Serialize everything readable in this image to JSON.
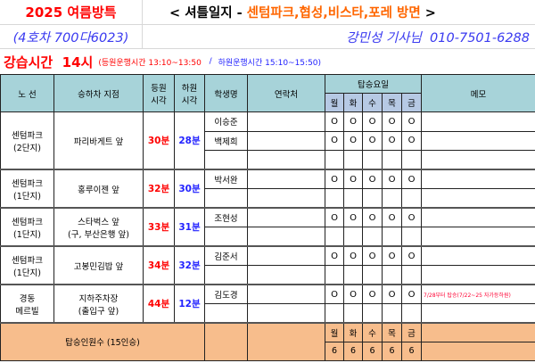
{
  "header": {
    "program": "2025 여름방특",
    "title_prefix": "< 셔틀일지 - ",
    "title_area": "센텀파크,협성,비스타,포레 방면",
    "title_suffix": " >",
    "bus": "(4호차 700다6023)",
    "driver": "강민성 기사님  010-7501-6288"
  },
  "schedule": {
    "class_time": "강습시간  14시",
    "pickup": "(등원운행시간 13:10~13:50",
    "sep": " / ",
    "dropoff": "하원운행시간 15:10~15:50)"
  },
  "columns": {
    "route": "노 선",
    "stop": "승하차 지점",
    "pickup": "등원\n시각",
    "dropoff": "하원\n시각",
    "student": "학생명",
    "contact": "연락처",
    "days_title": "탑승요일",
    "memo": "메모",
    "days": [
      "월",
      "화",
      "수",
      "목",
      "금"
    ]
  },
  "groups": [
    {
      "route": [
        "센텀파크",
        "(2단지)"
      ],
      "stop": [
        "파리바게트 앞"
      ],
      "pickup": "30분",
      "dropoff": "28분",
      "students": [
        {
          "name": "이승준",
          "days": [
            "O",
            "O",
            "O",
            "O",
            "O"
          ],
          "memo": ""
        },
        {
          "name": "백제희",
          "days": [
            "O",
            "O",
            "O",
            "O",
            "O"
          ],
          "memo": ""
        },
        {
          "name": "",
          "days": [
            "",
            "",
            "",
            "",
            ""
          ],
          "memo": ""
        }
      ]
    },
    {
      "route": [
        "센텀파크",
        "(1단지)"
      ],
      "stop": [
        "홍루이젠 앞"
      ],
      "pickup": "32분",
      "dropoff": "30분",
      "students": [
        {
          "name": "박서완",
          "days": [
            "O",
            "O",
            "O",
            "O",
            "O"
          ],
          "memo": ""
        },
        {
          "name": "",
          "days": [
            "",
            "",
            "",
            "",
            ""
          ],
          "memo": ""
        }
      ]
    },
    {
      "route": [
        "센텀파크",
        "(1단지)"
      ],
      "stop": [
        "스타벅스 앞",
        "(구, 부산은행 앞)"
      ],
      "pickup": "33분",
      "dropoff": "31분",
      "students": [
        {
          "name": "조현성",
          "days": [
            "O",
            "O",
            "O",
            "O",
            "O"
          ],
          "memo": ""
        },
        {
          "name": "",
          "days": [
            "",
            "",
            "",
            "",
            ""
          ],
          "memo": ""
        }
      ]
    },
    {
      "route": [
        "센텀파크",
        "(1단지)"
      ],
      "stop": [
        "고봉민김밥 앞"
      ],
      "pickup": "34분",
      "dropoff": "32분",
      "students": [
        {
          "name": "김준서",
          "days": [
            "O",
            "O",
            "O",
            "O",
            "O"
          ],
          "memo": ""
        },
        {
          "name": "",
          "days": [
            "",
            "",
            "",
            "",
            ""
          ],
          "memo": ""
        }
      ]
    },
    {
      "route": [
        "경동",
        "메르빌"
      ],
      "stop": [
        "지하주차장",
        "(출입구 앞)"
      ],
      "pickup": "44분",
      "dropoff": "12분",
      "students": [
        {
          "name": "김도경",
          "days": [
            "O",
            "O",
            "O",
            "O",
            "O"
          ],
          "memo": "7/28부터 탑승(7/22~25 자가등하원)"
        },
        {
          "name": "",
          "days": [
            "",
            "",
            "",
            "",
            ""
          ],
          "memo": ""
        }
      ]
    }
  ],
  "footer": {
    "label": "탑승인원수 (15인승)",
    "days": [
      "월",
      "화",
      "수",
      "목",
      "금"
    ],
    "counts": [
      "6",
      "6",
      "6",
      "6",
      "6"
    ]
  }
}
